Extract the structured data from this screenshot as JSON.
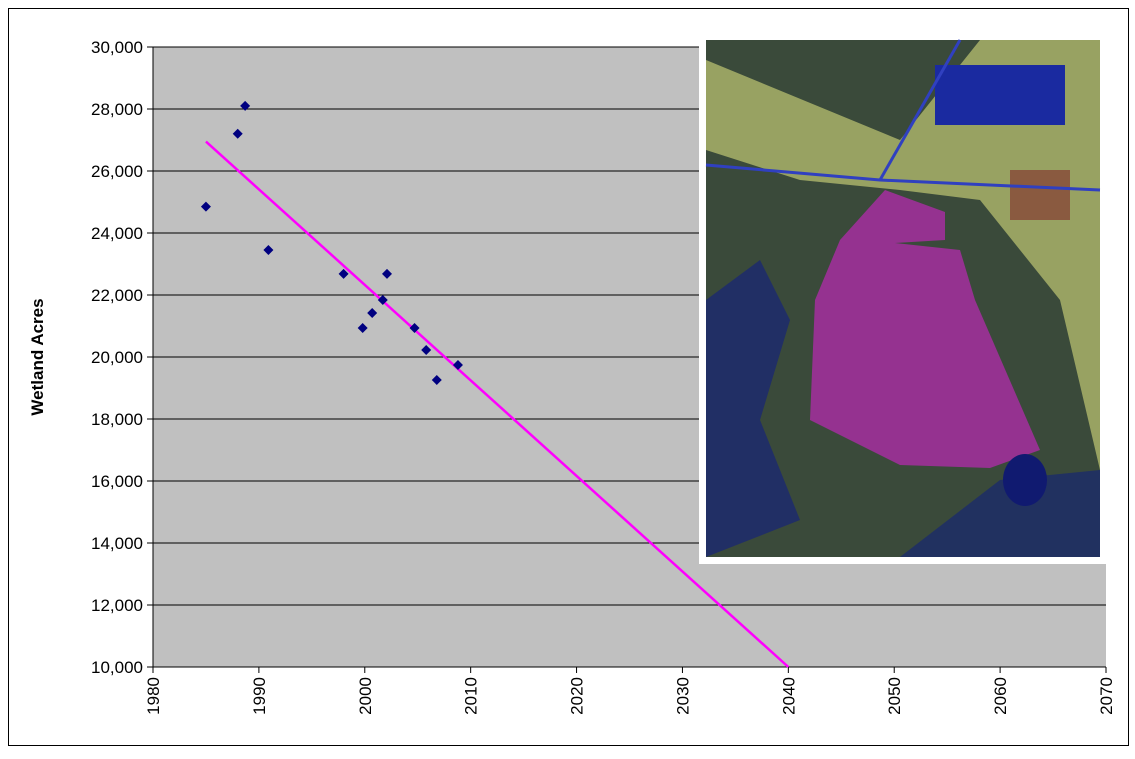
{
  "chart_data": {
    "type": "scatter",
    "y_label": "Wetland Acres",
    "x": [
      1985,
      1988,
      1988.7,
      1990.9,
      1998,
      1999.8,
      2000.7,
      2001.7,
      2002.1,
      2004.7,
      2005.8,
      2006.8,
      2008.8
    ],
    "series": [
      {
        "color": "#000080",
        "values": [
          24850,
          27200,
          28100,
          23450,
          22680,
          20935,
          21420,
          21840,
          22680,
          20935,
          20225,
          19260,
          19740
        ]
      }
    ],
    "trendline": {
      "x": [
        1985,
        2040
      ],
      "y": [
        26950,
        10000
      ],
      "color": "#ff00ff"
    },
    "xlim": [
      1980,
      2070
    ],
    "xticks": [
      1980,
      1990,
      2000,
      2010,
      2020,
      2030,
      2040,
      2050,
      2060,
      2070
    ],
    "ylim": [
      10000,
      30000
    ],
    "yticks": [
      {
        "value": 10000,
        "label": "10,000"
      },
      {
        "value": 12000,
        "label": "12,000"
      },
      {
        "value": 14000,
        "label": "14,000"
      },
      {
        "value": 16000,
        "label": "16,000"
      },
      {
        "value": 18000,
        "label": "18,000"
      },
      {
        "value": 20000,
        "label": "20,000"
      },
      {
        "value": 22000,
        "label": "22,000"
      },
      {
        "value": 24000,
        "label": "24,000"
      },
      {
        "value": 26000,
        "label": "26,000"
      },
      {
        "value": 28000,
        "label": "28,000"
      },
      {
        "value": 30000,
        "label": "30,000"
      }
    ],
    "grid": true,
    "plot_background": "#c0c0c0"
  }
}
